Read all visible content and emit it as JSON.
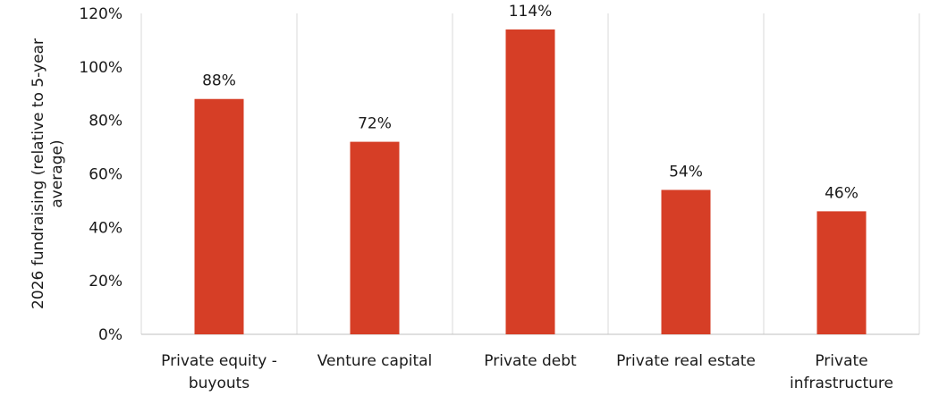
{
  "chart_data": {
    "type": "bar",
    "categories": [
      [
        "Private equity -",
        "buyouts"
      ],
      [
        "Venture capital"
      ],
      [
        "Private debt"
      ],
      [
        "Private real estate"
      ],
      [
        "Private",
        "infrastructure"
      ]
    ],
    "values": [
      88,
      72,
      114,
      54,
      46
    ],
    "data_labels": [
      "88%",
      "72%",
      "114%",
      "54%",
      "46%"
    ],
    "ylabel_lines": [
      "2026 fundraising (relative to 5-year",
      "average)"
    ],
    "yticks": [
      {
        "value": 0,
        "label": "0%"
      },
      {
        "value": 20,
        "label": "20%"
      },
      {
        "value": 40,
        "label": "40%"
      },
      {
        "value": 60,
        "label": "60%"
      },
      {
        "value": 80,
        "label": "80%"
      },
      {
        "value": 100,
        "label": "100%"
      },
      {
        "value": 120,
        "label": "120%"
      }
    ],
    "ylim": [
      0,
      120
    ],
    "bar_color": "#d63e26",
    "grid": "vertical category separators"
  }
}
